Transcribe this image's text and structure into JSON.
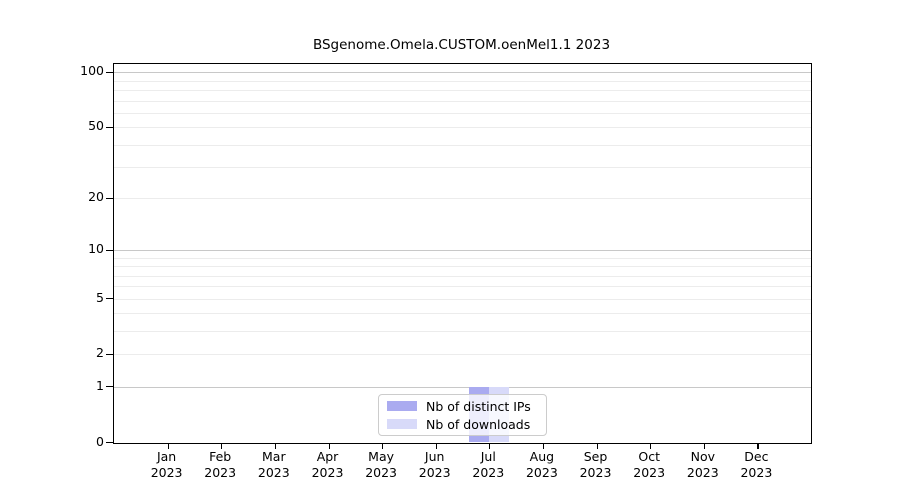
{
  "chart_data": {
    "type": "bar",
    "title": "BSgenome.Omela.CUSTOM.oenMel1.1 2023",
    "categories": [
      "Jan 2023",
      "Feb 2023",
      "Mar 2023",
      "Apr 2023",
      "May 2023",
      "Jun 2023",
      "Jul 2023",
      "Aug 2023",
      "Sep 2023",
      "Oct 2023",
      "Nov 2023",
      "Dec 2023"
    ],
    "series": [
      {
        "name": "Nb of distinct IPs",
        "color": "#aaabf0",
        "values": [
          0,
          0,
          0,
          0,
          0,
          0,
          1,
          0,
          0,
          0,
          0,
          0
        ]
      },
      {
        "name": "Nb of downloads",
        "color": "#d8daf9",
        "values": [
          0,
          0,
          0,
          0,
          0,
          0,
          1,
          0,
          0,
          0,
          0,
          0
        ]
      }
    ],
    "xlabel": "",
    "ylabel": "",
    "yscale": "log1p",
    "yticks": [
      0,
      1,
      2,
      5,
      10,
      20,
      50,
      100
    ],
    "ylim": [
      0,
      111
    ],
    "grid": "horizontal",
    "legend_position": "inside-bottom-center"
  },
  "colors": {
    "grid_minor": "#ececec",
    "grid_major": "#c8c8c8",
    "axis": "#000000",
    "legend_border": "#cccccc",
    "legend_background": "rgba(255,255,255,0.8)"
  }
}
